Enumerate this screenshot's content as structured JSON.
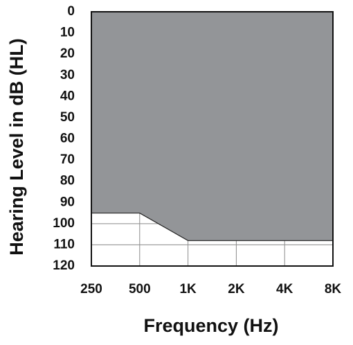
{
  "chart_data": {
    "type": "area",
    "x_label": "Frequency (Hz)",
    "y_label": "Hearing Level in dB (HL)",
    "categories": [
      "250",
      "500",
      "1K",
      "2K",
      "4K",
      "8K"
    ],
    "values": [
      95,
      95,
      108,
      108,
      108,
      108
    ],
    "color": "#939598",
    "ylim": [
      0,
      120
    ],
    "y_inverted": true,
    "yticks": [
      0,
      10,
      20,
      30,
      40,
      50,
      60,
      70,
      80,
      90,
      100,
      110,
      120
    ],
    "grid": true
  }
}
